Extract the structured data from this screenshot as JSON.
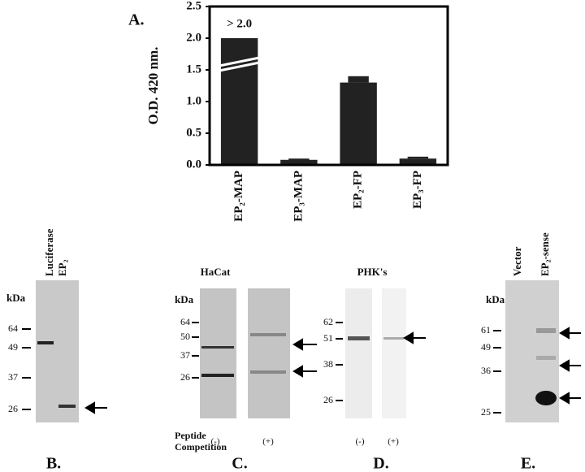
{
  "chart_data": {
    "type": "bar",
    "panel_label": "A.",
    "ylabel": "O.D. 420 nm.",
    "categories": [
      "EP₂-MAP",
      "EP₃-MAP",
      "EP₂-FP",
      "EP₃-FP"
    ],
    "values": [
      2.0,
      0.08,
      1.3,
      0.1
    ],
    "errors": [
      null,
      0.02,
      0.1,
      0.03
    ],
    "value_labels": [
      "> 2.0",
      null,
      null,
      null
    ],
    "color": "#222222",
    "ylim": [
      0,
      2.5
    ],
    "yticks": [
      {
        "value": 0,
        "label": "0.0"
      },
      {
        "value": 0.5,
        "label": "0.5"
      },
      {
        "value": 1,
        "label": "1.0"
      },
      {
        "value": 1.5,
        "label": "1.5"
      },
      {
        "value": 2,
        "label": "2.0"
      },
      {
        "value": 2.5,
        "label": "2.5"
      }
    ]
  },
  "panels": [
    {
      "label": "B.",
      "lanes": [
        "Luciferase",
        "EP₂"
      ],
      "unit": "kDa",
      "markers": [
        64,
        49,
        37,
        26
      ]
    },
    {
      "label": "C.",
      "title": "HaCat",
      "unit": "kDa",
      "markers": [
        64,
        50,
        37,
        26
      ],
      "caption": [
        "Peptide",
        "Competition"
      ],
      "groups": [
        "(-)",
        "(+)"
      ]
    },
    {
      "label": "D.",
      "title": "PHK's",
      "markers": [
        62,
        51,
        38,
        26
      ],
      "groups": [
        "(-)",
        "(+)"
      ]
    },
    {
      "label": "E.",
      "lanes": [
        "Vector",
        "EP₂-sense"
      ],
      "unit": "kDa",
      "markers": [
        61,
        49,
        36,
        25
      ]
    }
  ]
}
